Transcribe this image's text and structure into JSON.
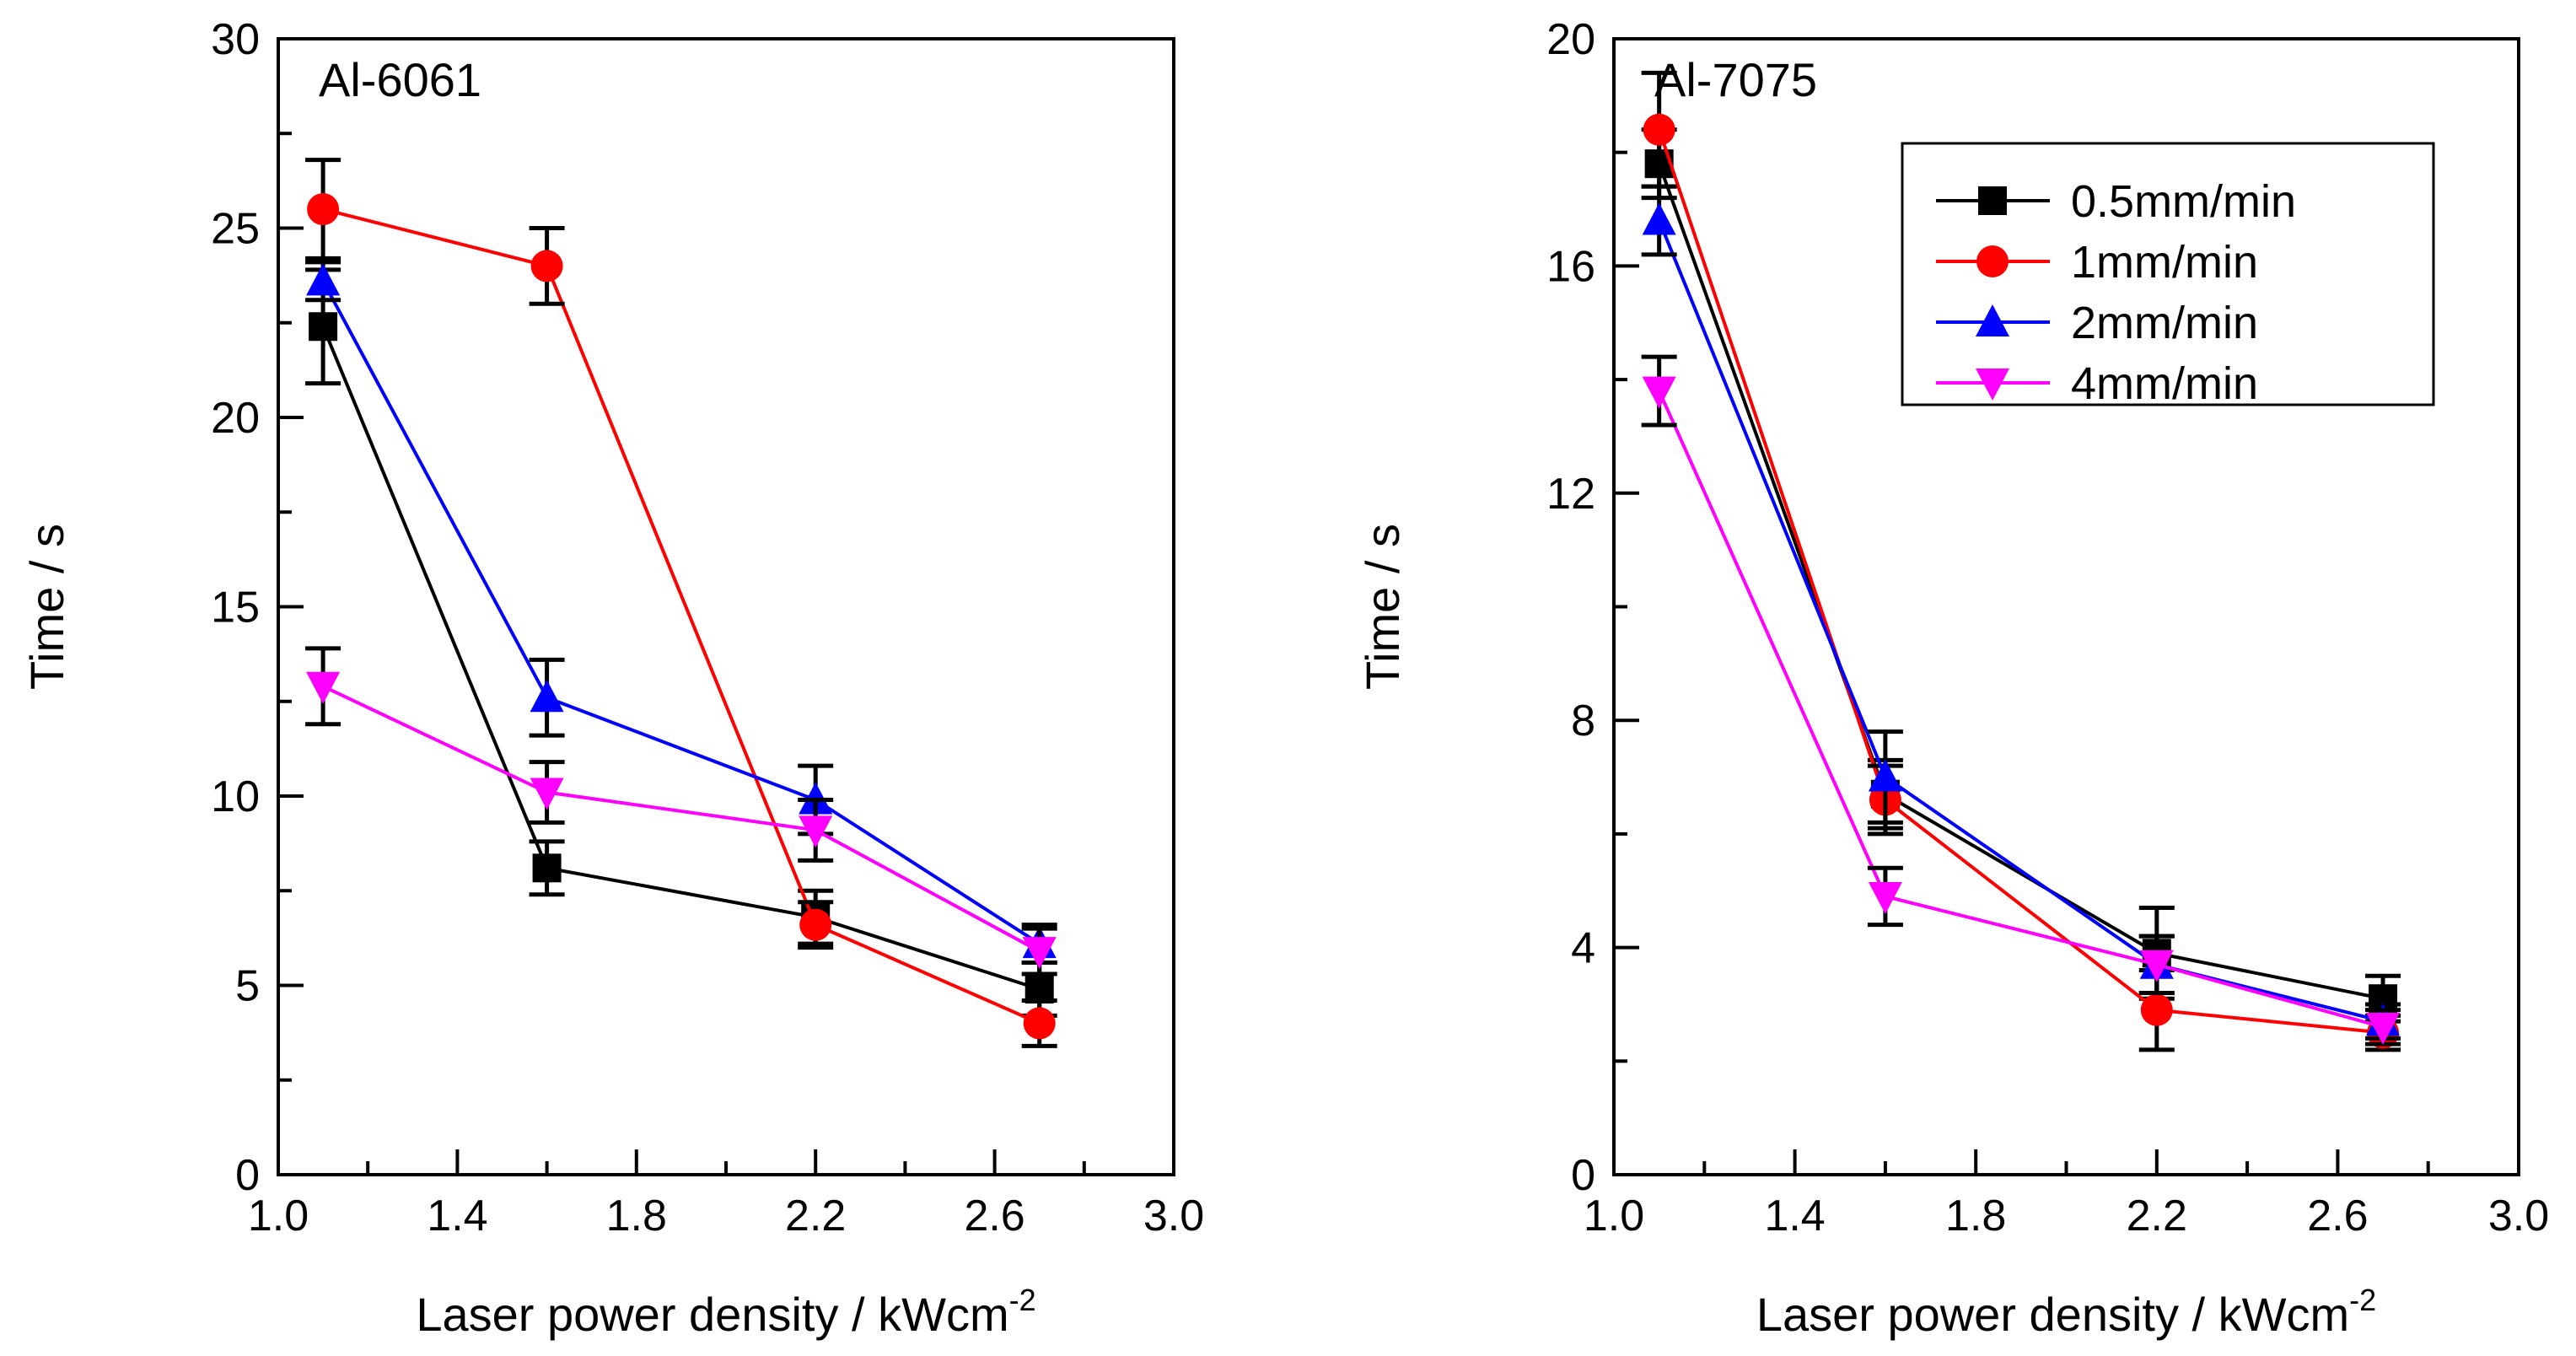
{
  "chart_data": [
    {
      "type": "line",
      "panel_label": "Al-6061",
      "xlabel": "Laser power density / kWcm",
      "xlabel_sup": "-2",
      "ylabel": "Time / s",
      "xlim": [
        1.0,
        3.0
      ],
      "ylim": [
        0,
        30
      ],
      "xticks": [
        "1.0",
        "1.4",
        "1.8",
        "2.2",
        "2.6",
        "3.0"
      ],
      "yticks": [
        "0",
        "5",
        "10",
        "15",
        "20",
        "25",
        "30"
      ],
      "x": [
        1.1,
        1.6,
        2.2,
        2.7
      ],
      "error_bars": true,
      "series": [
        {
          "name": "0.5mm/min",
          "color": "#000000",
          "marker": "square",
          "values": [
            22.4,
            8.1,
            6.8,
            4.9
          ],
          "errors": [
            1.5,
            0.7,
            0.7,
            0.7
          ]
        },
        {
          "name": "1mm/min",
          "color": "#ff0000",
          "marker": "circle",
          "values": [
            25.5,
            24.0,
            6.6,
            4.0
          ],
          "errors": [
            1.3,
            1.0,
            0.6,
            0.6
          ]
        },
        {
          "name": "2mm/min",
          "color": "#0000ff",
          "marker": "triangle-up",
          "values": [
            23.6,
            12.6,
            9.9,
            6.1
          ],
          "errors": [
            0.5,
            1.0,
            0.9,
            0.5
          ]
        },
        {
          "name": "4mm/min",
          "color": "#ff00ff",
          "marker": "triangle-down",
          "values": [
            12.9,
            10.1,
            9.1,
            5.9
          ],
          "errors": [
            1.0,
            0.8,
            0.8,
            0.6
          ]
        }
      ]
    },
    {
      "type": "line",
      "panel_label": "Al-7075",
      "xlabel": "Laser power density / kWcm",
      "xlabel_sup": "-2",
      "ylabel": "Time / s",
      "xlim": [
        1.0,
        3.0
      ],
      "ylim": [
        0,
        20
      ],
      "xticks": [
        "1.0",
        "1.4",
        "1.8",
        "2.2",
        "2.6",
        "3.0"
      ],
      "yticks": [
        "0",
        "4",
        "8",
        "12",
        "16",
        "20"
      ],
      "x": [
        1.1,
        1.6,
        2.2,
        2.7
      ],
      "error_bars": true,
      "legend_position": "top-right",
      "series": [
        {
          "name": "0.5mm/min",
          "color": "#000000",
          "marker": "square",
          "values": [
            17.8,
            6.7,
            3.9,
            3.1
          ],
          "errors": [
            0.6,
            0.6,
            0.8,
            0.4
          ]
        },
        {
          "name": "1mm/min",
          "color": "#ff0000",
          "marker": "circle",
          "values": [
            18.4,
            6.6,
            2.9,
            2.5
          ],
          "errors": [
            1.0,
            0.6,
            0.7,
            0.3
          ]
        },
        {
          "name": "2mm/min",
          "color": "#0000ff",
          "marker": "triangle-up",
          "values": [
            16.8,
            7.0,
            3.7,
            2.7
          ],
          "errors": [
            0.6,
            0.8,
            0.5,
            0.3
          ]
        },
        {
          "name": "4mm/min",
          "color": "#ff00ff",
          "marker": "triangle-down",
          "values": [
            13.8,
            4.9,
            3.7,
            2.6
          ],
          "errors": [
            0.6,
            0.5,
            0.5,
            0.3
          ]
        }
      ]
    }
  ]
}
